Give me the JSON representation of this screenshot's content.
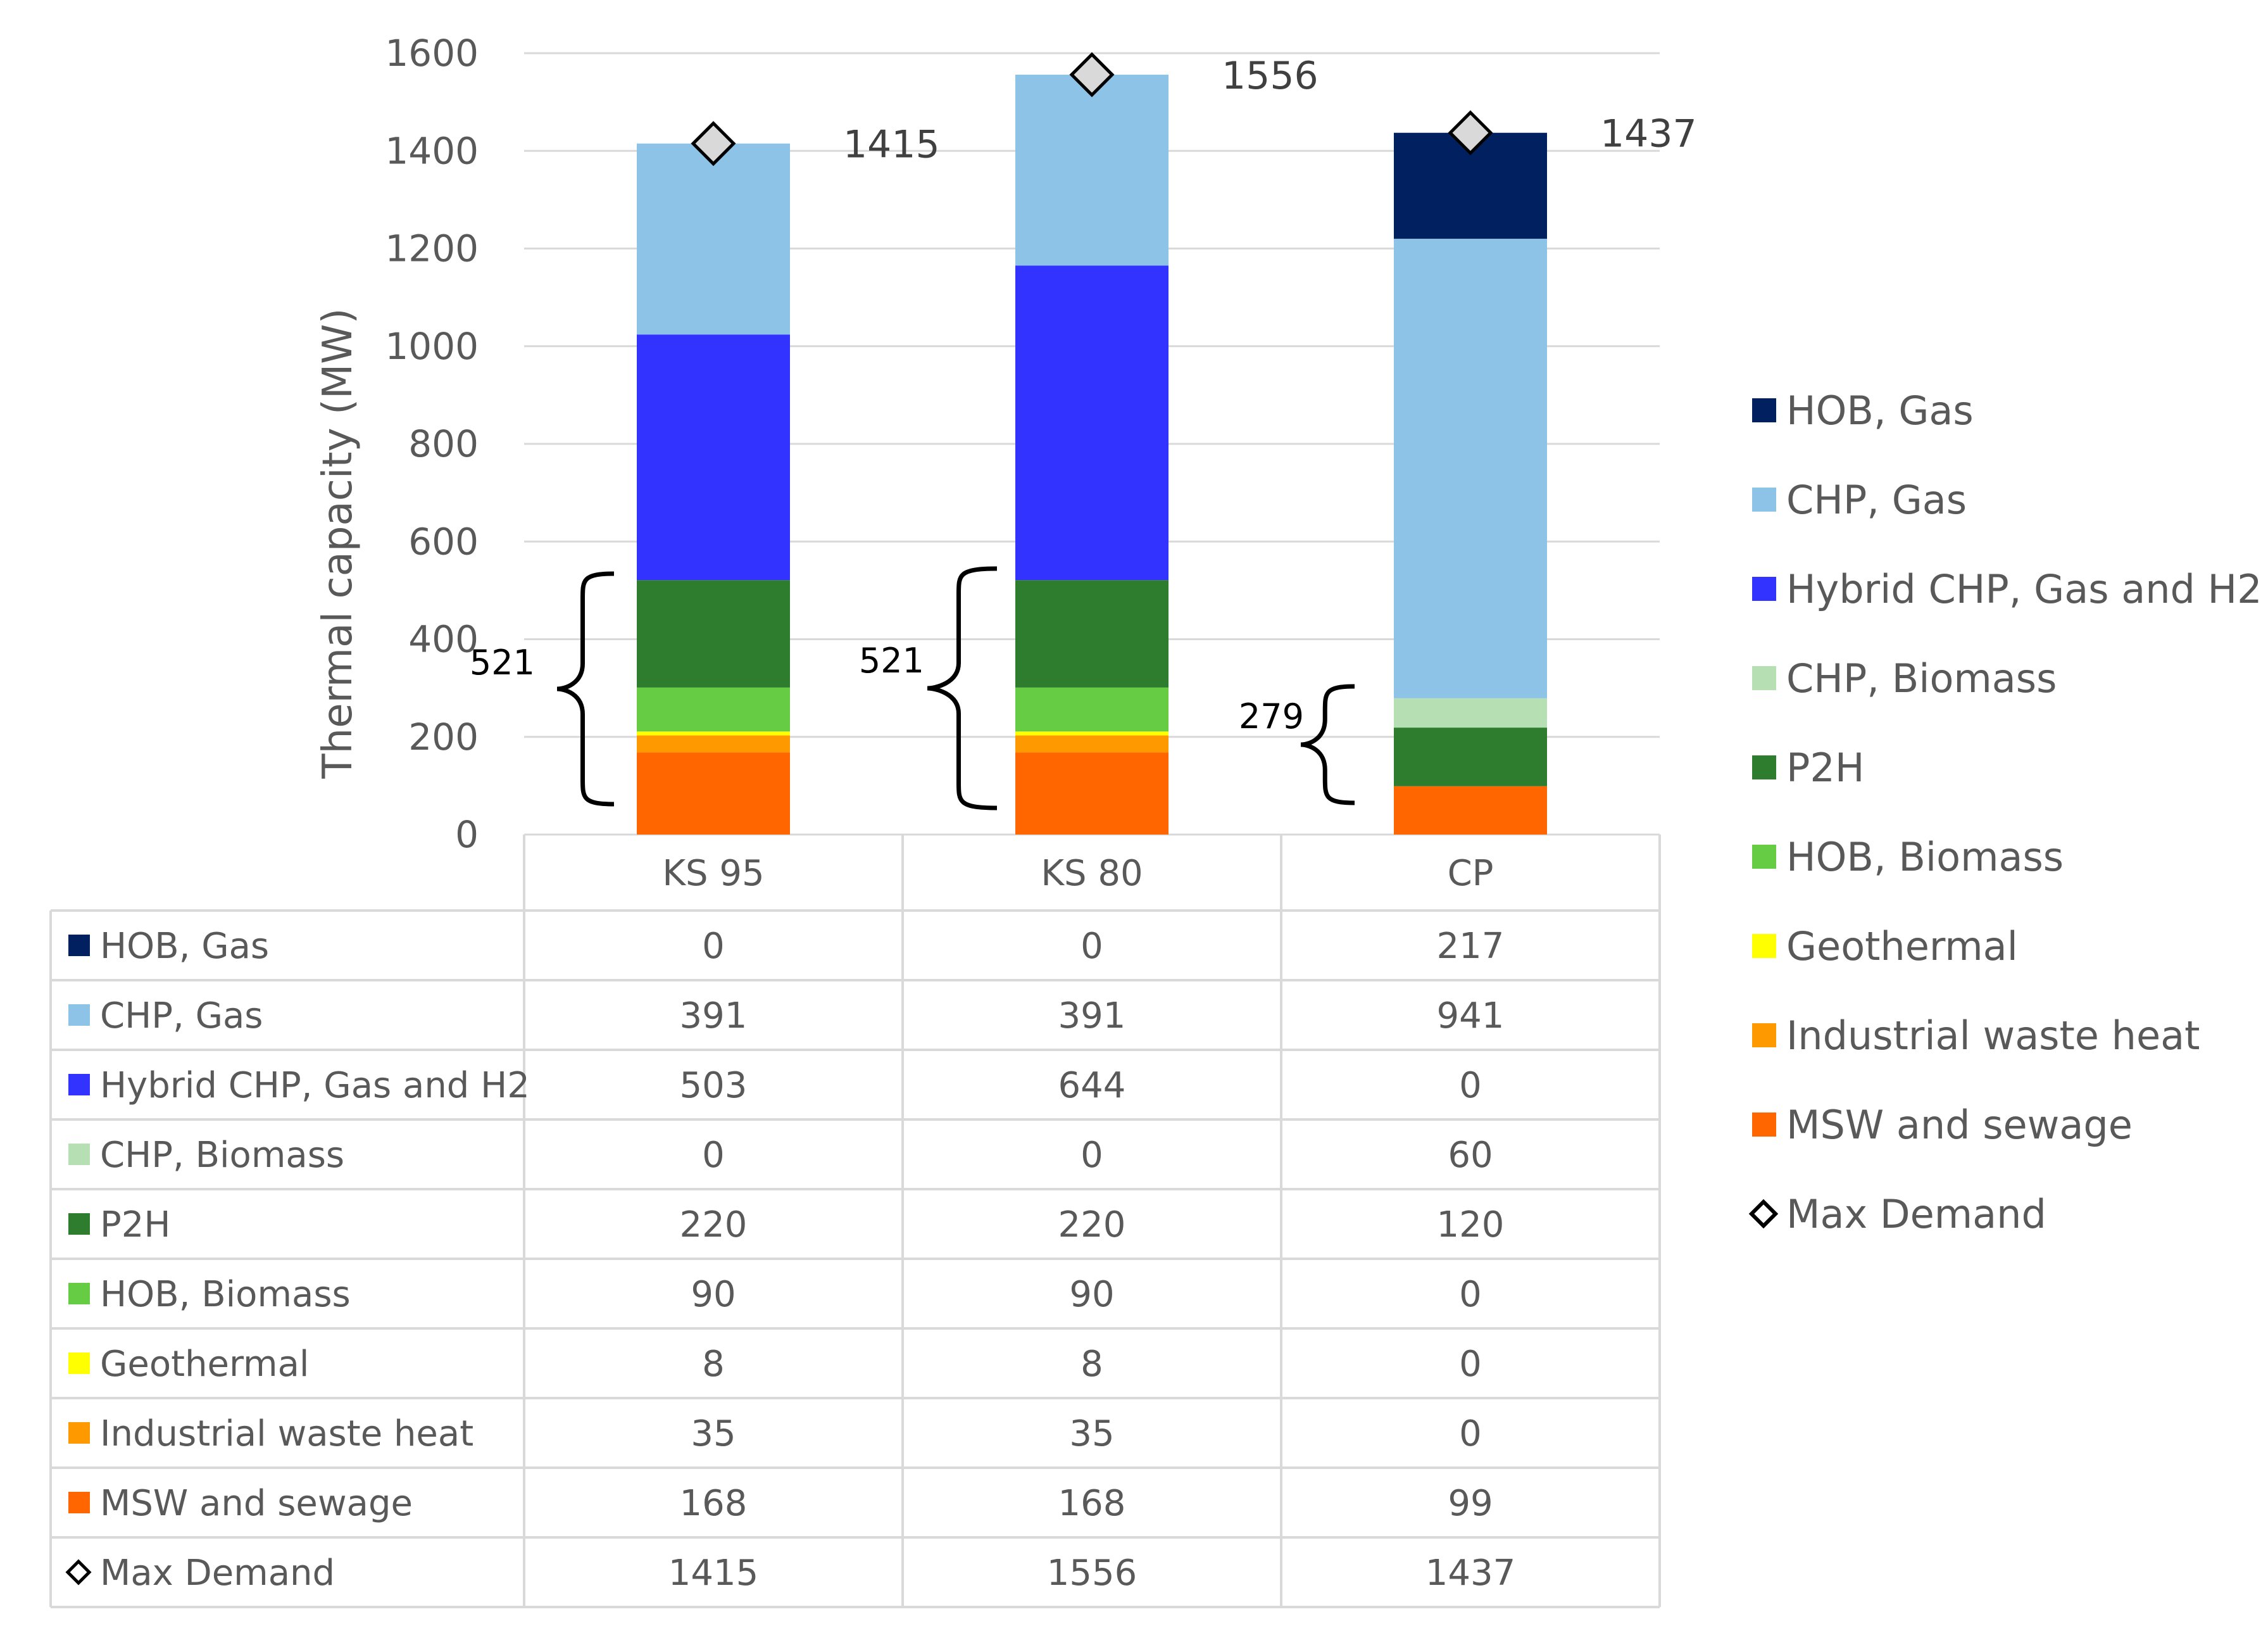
{
  "chart_data": {
    "type": "bar",
    "stacked": true,
    "ylabel": "Thermal capacity (MW)",
    "ylim": [
      0,
      1600
    ],
    "yticks": [
      0,
      200,
      400,
      600,
      800,
      1000,
      1200,
      1400,
      1600
    ],
    "grid": true,
    "legend_position": "right",
    "categories": [
      "KS 95",
      "KS 80",
      "CP"
    ],
    "series": [
      {
        "name": "MSW and sewage",
        "color": "#FF6600",
        "values": [
          168,
          168,
          99
        ]
      },
      {
        "name": "Industrial waste heat",
        "color": "#FF9900",
        "values": [
          35,
          35,
          0
        ]
      },
      {
        "name": "Geothermal",
        "color": "#FFFF00",
        "values": [
          8,
          8,
          0
        ]
      },
      {
        "name": "HOB, Biomass",
        "color": "#66CC44",
        "values": [
          90,
          90,
          0
        ]
      },
      {
        "name": "P2H",
        "color": "#2E7D2E",
        "values": [
          220,
          220,
          120
        ]
      },
      {
        "name": "CHP, Biomass",
        "color": "#B7DFB4",
        "values": [
          0,
          0,
          60
        ]
      },
      {
        "name": "Hybrid CHP, Gas and H2",
        "color": "#3333FF",
        "values": [
          503,
          644,
          0
        ]
      },
      {
        "name": "CHP, Gas",
        "color": "#8DC3E6",
        "values": [
          391,
          391,
          941
        ]
      },
      {
        "name": "HOB, Gas",
        "color": "#002060",
        "values": [
          0,
          0,
          217
        ]
      }
    ],
    "max_demand": {
      "name": "Max Demand",
      "values": [
        1415,
        1556,
        1437
      ]
    },
    "annotations": [
      "521",
      "521",
      "279"
    ],
    "legend_order": [
      "HOB, Gas",
      "CHP, Gas",
      "Hybrid CHP, Gas and H2",
      "CHP, Biomass",
      "P2H",
      "HOB, Biomass",
      "Geothermal",
      "Industrial waste heat",
      "MSW and sewage",
      "Max Demand"
    ]
  }
}
